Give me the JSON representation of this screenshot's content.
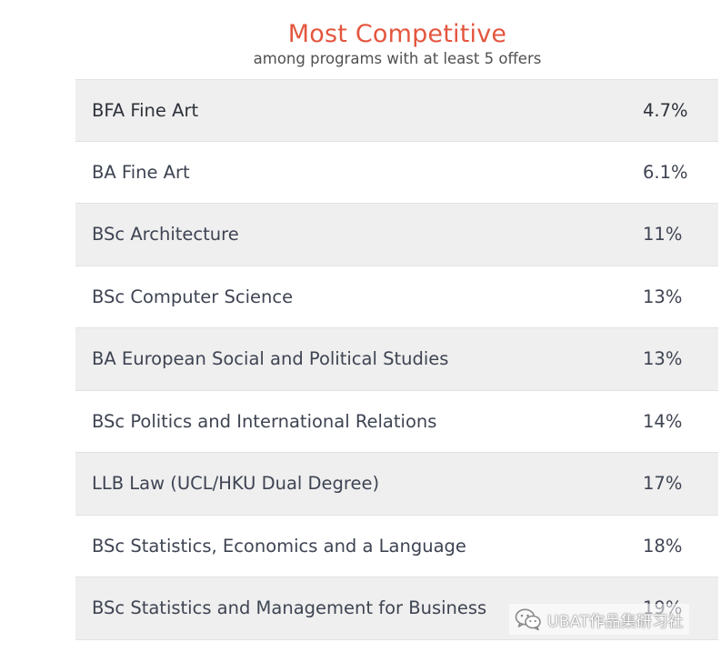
{
  "header": {
    "title": "Most Competitive",
    "subtitle": "among programs with at least 5 offers"
  },
  "table": {
    "rows": [
      {
        "program": "BFA Fine Art",
        "rate": "4.7%"
      },
      {
        "program": "BA Fine Art",
        "rate": "6.1%"
      },
      {
        "program": "BSc Architecture",
        "rate": "11%"
      },
      {
        "program": "BSc Computer Science",
        "rate": "13%"
      },
      {
        "program": "BA European Social and Political Studies",
        "rate": "13%"
      },
      {
        "program": "BSc Politics and International Relations",
        "rate": "14%"
      },
      {
        "program": "LLB Law (UCL/HKU Dual Degree)",
        "rate": "17%"
      },
      {
        "program": "BSc Statistics, Economics and a Language",
        "rate": "18%"
      },
      {
        "program": "BSc Statistics and Management for Business",
        "rate": "19%"
      }
    ]
  },
  "watermark": {
    "text": "UBAT作品集研习社",
    "icon": "wechat-icon"
  },
  "colors": {
    "title": "#e4563f",
    "text": "#3e4452",
    "row_shade": "#efefef"
  }
}
